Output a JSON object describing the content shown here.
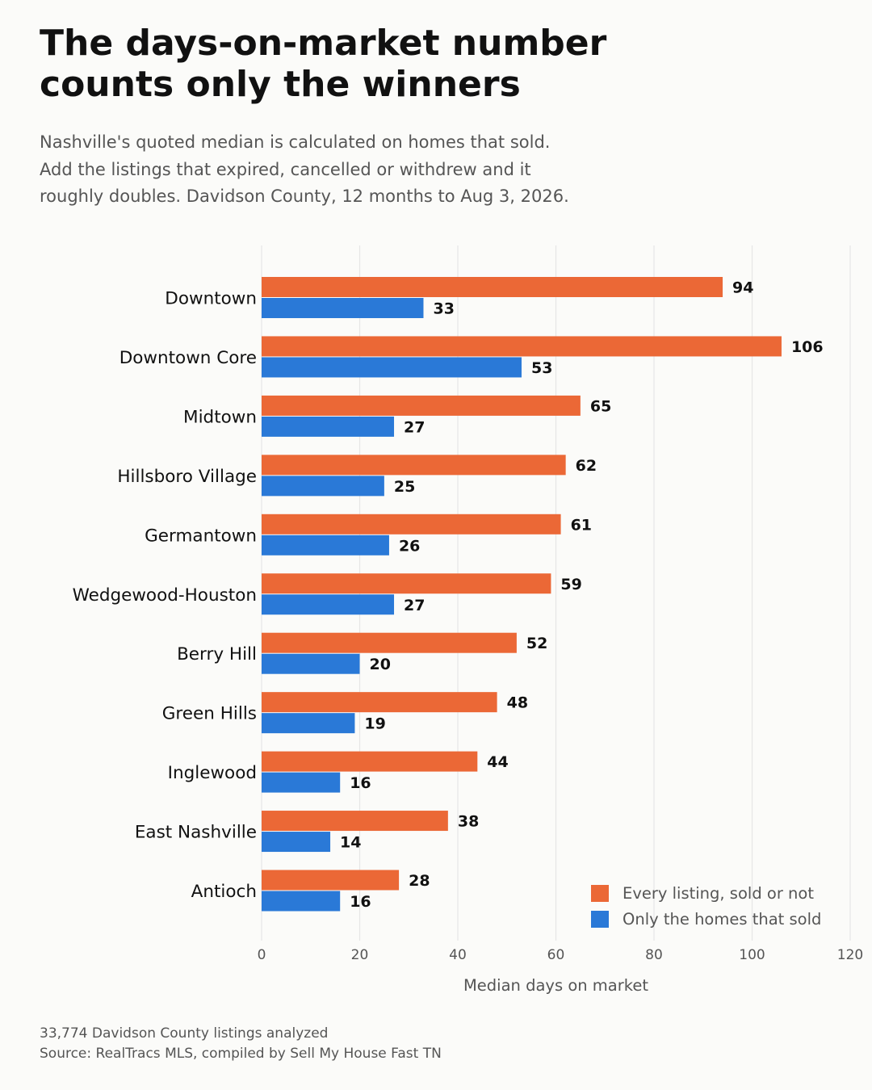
{
  "header": {
    "title_lines": [
      "The days-on-market number",
      "counts only the winners"
    ],
    "subtitle_lines": [
      "Nashville's quoted median is calculated on homes that sold.",
      "Add the listings that expired, cancelled or withdrew and it",
      "roughly doubles. Davidson County, 12 months to Aug 3, 2026."
    ]
  },
  "footer": {
    "lines": [
      "33,774 Davidson County listings analyzed",
      "Source: RealTracs MLS, compiled by Sell My House Fast TN"
    ]
  },
  "chart_data": {
    "type": "bar",
    "orientation": "horizontal",
    "categories": [
      "Downtown",
      "Downtown Core",
      "Midtown",
      "Hillsboro Village",
      "Germantown",
      "Wedgewood-Houston",
      "Berry Hill",
      "Green Hills",
      "Inglewood",
      "East Nashville",
      "Antioch"
    ],
    "series": [
      {
        "name": "Every listing, sold or not",
        "color": "#eb6836",
        "values": [
          94,
          106,
          65,
          62,
          61,
          59,
          52,
          48,
          44,
          38,
          28
        ]
      },
      {
        "name": "Only the homes that sold",
        "color": "#2a79d7",
        "values": [
          33,
          53,
          27,
          25,
          26,
          27,
          20,
          19,
          16,
          14,
          16
        ]
      }
    ],
    "xlabel": "Median days on market",
    "xlim": [
      0,
      120
    ],
    "xticks": [
      0,
      20,
      40,
      60,
      80,
      100,
      120
    ],
    "grid": "vertical",
    "legend_position": "bottom-right",
    "data_labels": true
  }
}
